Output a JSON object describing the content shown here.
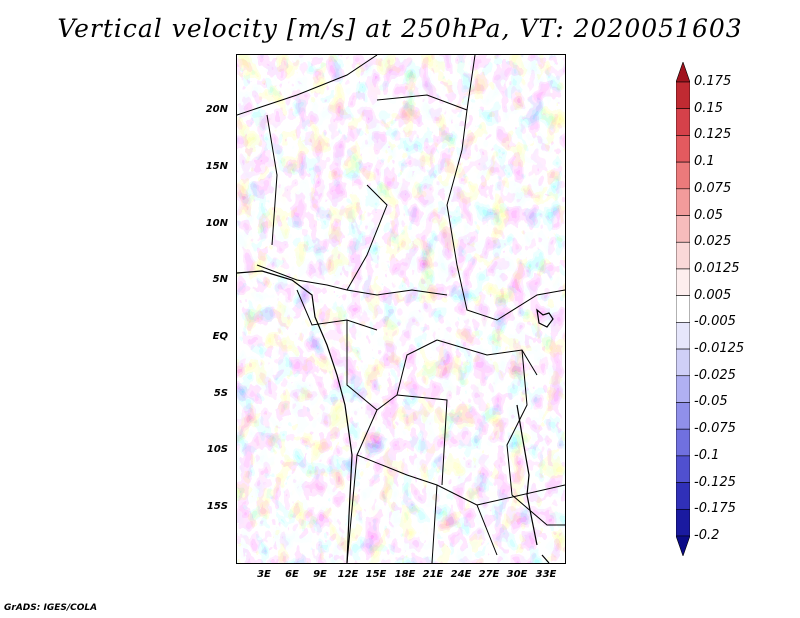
{
  "title": "Vertical velocity [m/s] at 250hPa, VT: 2020051603",
  "footer": "GrADS: IGES/COLA",
  "map": {
    "lat_labels": [
      "20N",
      "15N",
      "10N",
      "5N",
      "EQ",
      "5S",
      "10S",
      "15S"
    ],
    "lon_labels": [
      "3E",
      "6E",
      "9E",
      "12E",
      "15E",
      "18E",
      "21E",
      "24E",
      "27E",
      "30E",
      "33E"
    ],
    "background_field": "vertical-velocity-250hPa"
  },
  "colorbar": {
    "levels": [
      "0.175",
      "0.15",
      "0.125",
      "0.1",
      "0.075",
      "0.05",
      "0.025",
      "0.0125",
      "0.005",
      "-0.005",
      "-0.0125",
      "-0.025",
      "-0.05",
      "-0.075",
      "-0.1",
      "-0.125",
      "-0.175",
      "-0.2"
    ],
    "colors": [
      "#a0141e",
      "#c02a32",
      "#d5414a",
      "#e35a5f",
      "#ec7a7b",
      "#f29b9b",
      "#f7bcbc",
      "#fad8d8",
      "#fdeeee",
      "#ffffff",
      "#e6e6fb",
      "#cfcff7",
      "#b0b0f2",
      "#9090ea",
      "#7070df",
      "#5050cf",
      "#3030b8",
      "#1a1aa0",
      "#0c0c88"
    ]
  }
}
